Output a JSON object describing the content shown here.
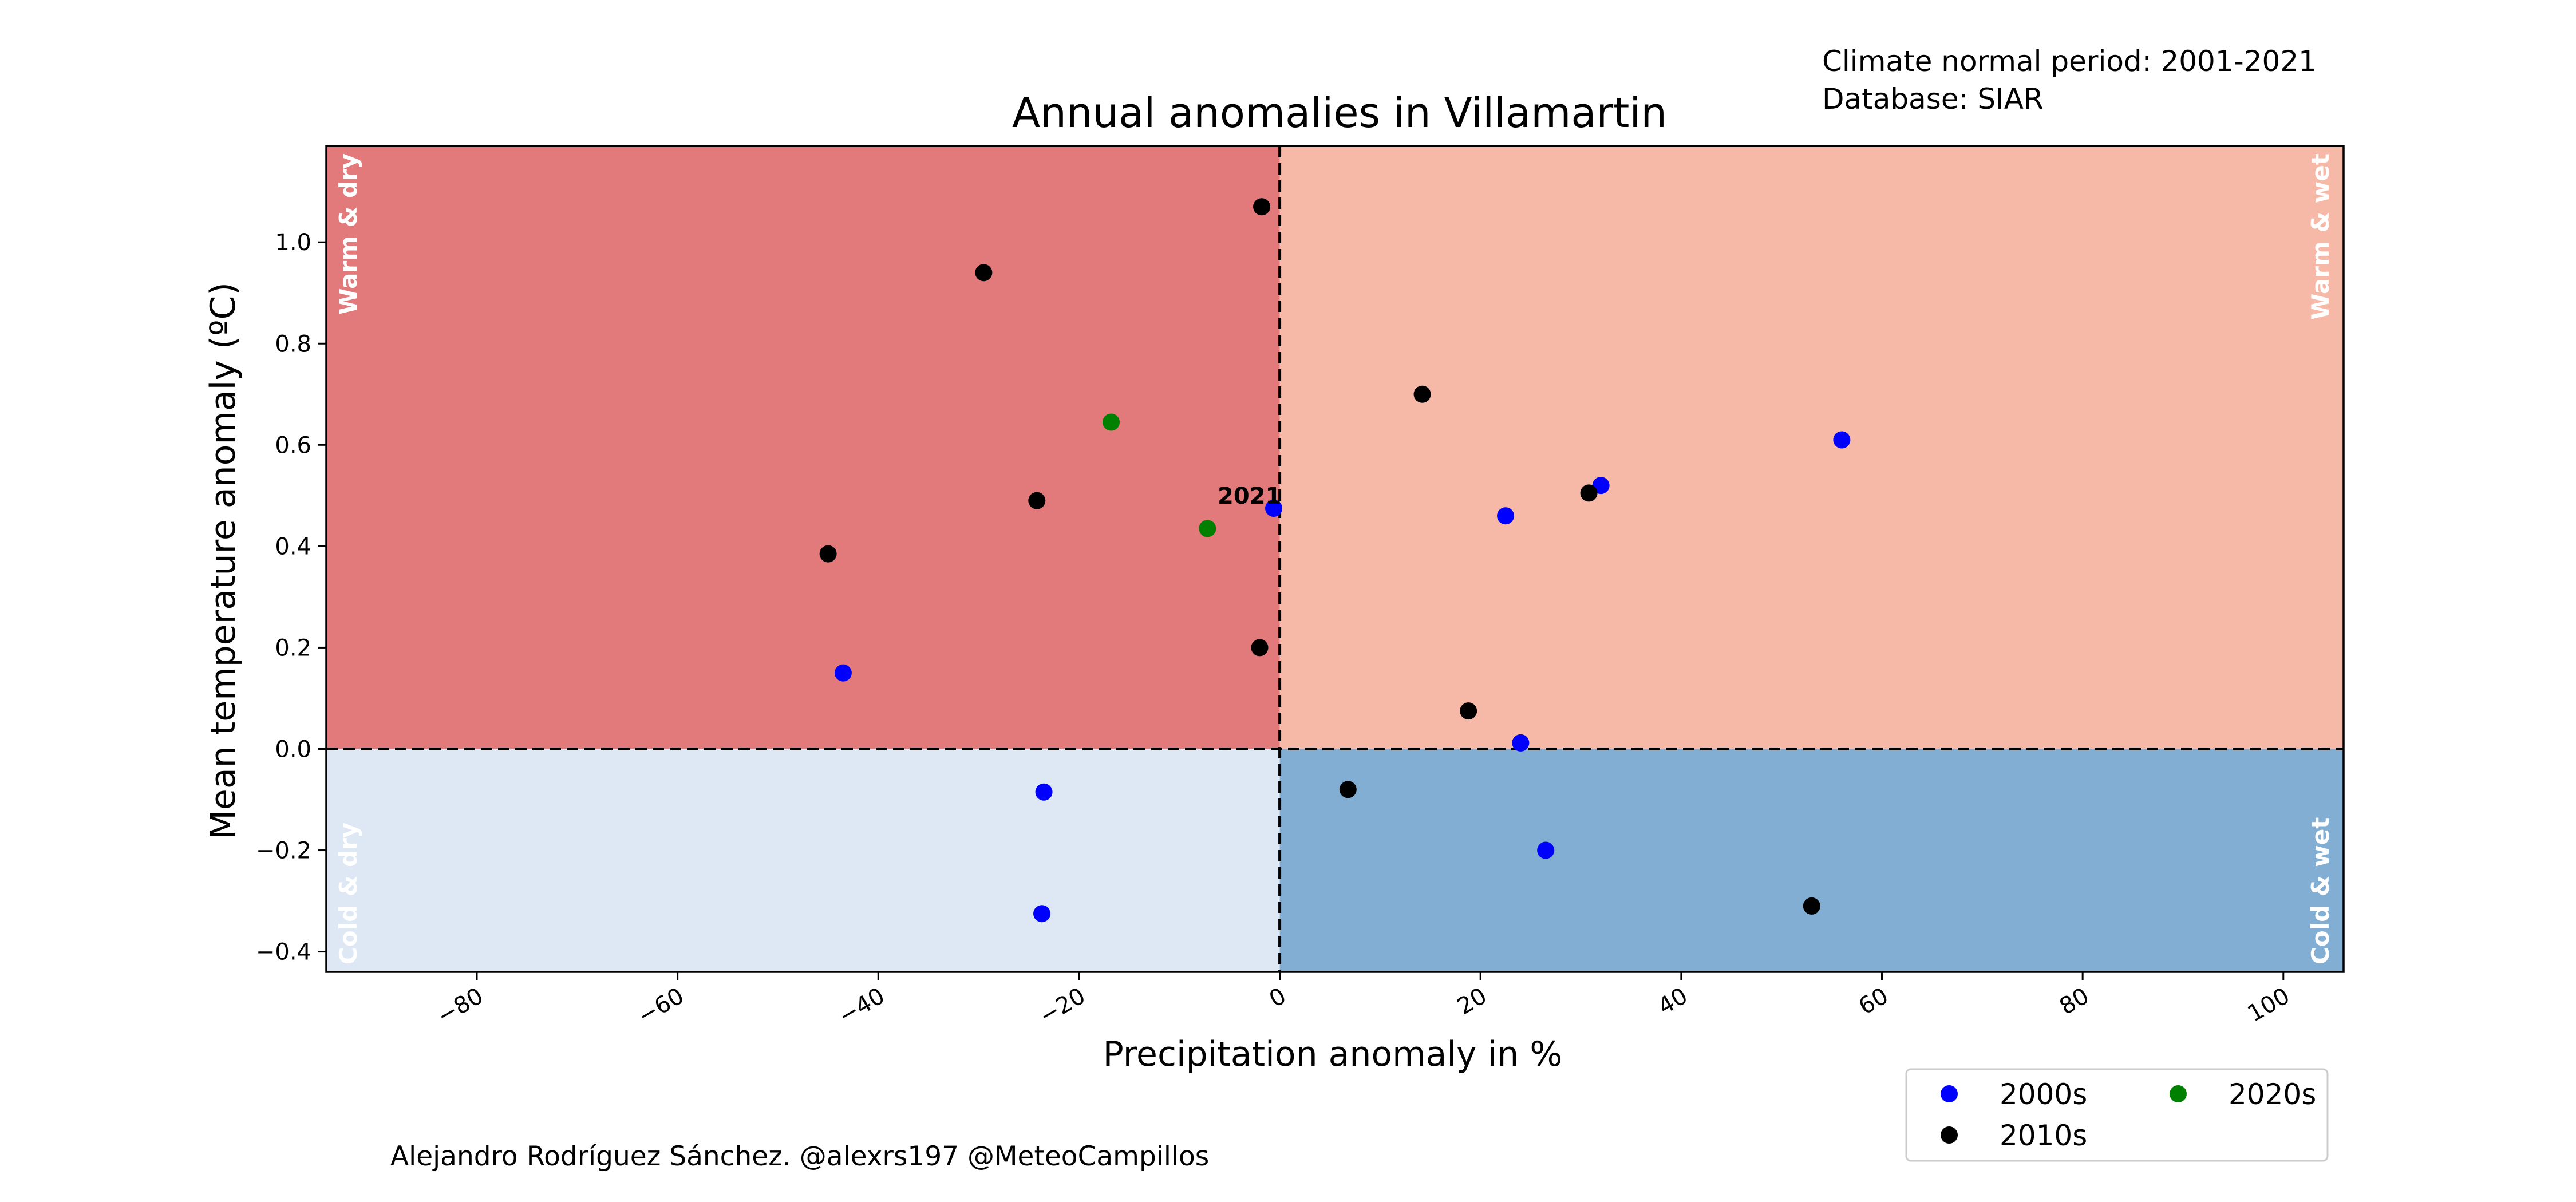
{
  "chart_data": {
    "type": "scatter",
    "title": "Annual anomalies in Villamartin",
    "xlabel": "Precipitation anomaly in %",
    "ylabel": "Mean temperature anomaly (ºC)",
    "xlim": [
      -95,
      106
    ],
    "ylim": [
      -0.44,
      1.19
    ],
    "xticks": [
      -80,
      -60,
      -40,
      -20,
      0,
      20,
      40,
      60,
      80,
      100
    ],
    "xtick_labels": [
      "−80",
      "−60",
      "−40",
      "−20",
      "0",
      "20",
      "40",
      "60",
      "80",
      "100"
    ],
    "yticks": [
      -0.4,
      -0.2,
      0.0,
      0.2,
      0.4,
      0.6,
      0.8,
      1.0
    ],
    "ytick_labels": [
      "−0.4",
      "−0.2",
      "0.0",
      "0.2",
      "0.4",
      "0.6",
      "0.8",
      "1.0"
    ],
    "grid": false,
    "legend_position": "bottom-right",
    "reference_lines": {
      "x": 0,
      "y": 0,
      "style": "dashed"
    },
    "quadrants": [
      {
        "label": "Warm & dry",
        "color": "#e27a7c",
        "label_color": "#ffffff"
      },
      {
        "label": "Warm & wet",
        "color": "#f7b9a7",
        "label_color": "#ffffff"
      },
      {
        "label": "Cold & dry",
        "color": "#dde8f4",
        "label_color": "#ffffff"
      },
      {
        "label": "Cold & wet",
        "color": "#82aed4",
        "label_color": "#ffffff"
      }
    ],
    "series": [
      {
        "name": "2000s",
        "color": "#0000ff",
        "points": [
          {
            "x": -43.5,
            "y": 0.15
          },
          {
            "x": -23.5,
            "y": -0.085
          },
          {
            "x": -23.7,
            "y": -0.325
          },
          {
            "x": 22.5,
            "y": 0.46
          },
          {
            "x": 24.0,
            "y": 0.012
          },
          {
            "x": 26.5,
            "y": -0.2
          },
          {
            "x": 32.0,
            "y": 0.52
          },
          {
            "x": 56.0,
            "y": 0.61
          }
        ]
      },
      {
        "name": "2010s",
        "color": "#000000",
        "points": [
          {
            "x": -45.0,
            "y": 0.385
          },
          {
            "x": -29.5,
            "y": 0.94
          },
          {
            "x": -24.2,
            "y": 0.49
          },
          {
            "x": -1.8,
            "y": 1.07
          },
          {
            "x": -2.0,
            "y": 0.2
          },
          {
            "x": 6.8,
            "y": -0.08
          },
          {
            "x": 14.2,
            "y": 0.7
          },
          {
            "x": 18.8,
            "y": 0.075
          },
          {
            "x": 30.8,
            "y": 0.505
          },
          {
            "x": 53.0,
            "y": -0.31
          }
        ]
      },
      {
        "name": "2020s",
        "color": "#008000",
        "points": [
          {
            "x": -16.8,
            "y": 0.645
          },
          {
            "x": -7.2,
            "y": 0.435
          }
        ]
      }
    ],
    "highlight": {
      "series": "2000s",
      "x": -0.6,
      "y": 0.475,
      "label": "2021"
    },
    "annotations": {
      "normal_period": "Climate normal period: 2001-2021",
      "database": "Database: SIAR",
      "credit": "Alejandro Rodríguez Sánchez. @alexrs197 @MeteoCampillos"
    }
  }
}
